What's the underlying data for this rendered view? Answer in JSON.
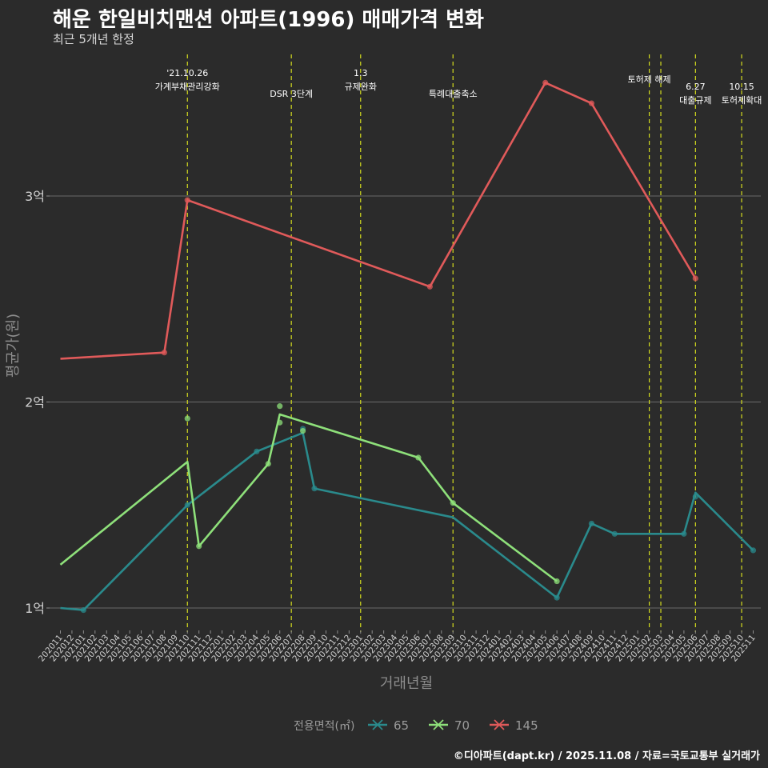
{
  "header": {
    "title": "해운 한일비치맨션 아파트(1996) 매매가격 변화",
    "subtitle": "최근 5개년 한정"
  },
  "caption": "©디아파트(dapt.kr) / 2025.11.08 / 자료=국토교통부 실거래가",
  "chart_data": {
    "type": "line",
    "title": "해운 한일비치맨션 아파트(1996) 매매가격 변화",
    "xlabel": "거래년월",
    "ylabel": "평균가(원)",
    "ylim": [
      0.9,
      3.7
    ],
    "yticks": [
      {
        "value": 1,
        "label": "1억"
      },
      {
        "value": 2,
        "label": "2억"
      },
      {
        "value": 3,
        "label": "3억"
      }
    ],
    "categories": [
      "202011",
      "202012",
      "202101",
      "202102",
      "202103",
      "202104",
      "202105",
      "202106",
      "202107",
      "202108",
      "202109",
      "202110",
      "202111",
      "202112",
      "202201",
      "202202",
      "202203",
      "202204",
      "202205",
      "202206",
      "202207",
      "202208",
      "202209",
      "202210",
      "202211",
      "202212",
      "202301",
      "202302",
      "202303",
      "202304",
      "202305",
      "202306",
      "202307",
      "202308",
      "202309",
      "202310",
      "202311",
      "202312",
      "202401",
      "202402",
      "202403",
      "202404",
      "202405",
      "202406",
      "202407",
      "202408",
      "202409",
      "202410",
      "202411",
      "202412",
      "202501",
      "202502",
      "202503",
      "202504",
      "202505",
      "202506",
      "202507",
      "202508",
      "202509",
      "202510",
      "202511"
    ],
    "legend": {
      "title": "전용면적(㎡)",
      "position": "bottom"
    },
    "series": [
      {
        "name": "65",
        "color": "#2a8a8c",
        "line": [
          [
            "202011",
            1.0
          ],
          [
            "202101",
            0.99
          ],
          [
            "202110",
            1.5
          ],
          [
            "202204",
            1.76
          ],
          [
            "202208",
            1.85
          ],
          [
            "202209",
            1.58
          ],
          [
            "202309",
            1.44
          ],
          [
            "202406",
            1.05
          ],
          [
            "202409",
            1.41
          ],
          [
            "202411",
            1.36
          ],
          [
            "202505",
            1.36
          ],
          [
            "202506",
            1.56
          ],
          [
            "202511",
            1.28
          ]
        ],
        "points": [
          [
            "202101",
            0.99
          ],
          [
            "202110",
            1.5
          ],
          [
            "202204",
            1.76
          ],
          [
            "202208",
            1.87
          ],
          [
            "202209",
            1.58
          ],
          [
            "202406",
            1.05
          ],
          [
            "202409",
            1.41
          ],
          [
            "202411",
            1.36
          ],
          [
            "202505",
            1.36
          ],
          [
            "202506",
            1.54
          ],
          [
            "202511",
            1.28
          ]
        ]
      },
      {
        "name": "70",
        "color": "#8ee07a",
        "line": [
          [
            "202011",
            1.21
          ],
          [
            "202110",
            1.71
          ],
          [
            "202111",
            1.3
          ],
          [
            "202205",
            1.7
          ],
          [
            "202206",
            1.94
          ],
          [
            "202306",
            1.73
          ],
          [
            "202309",
            1.51
          ],
          [
            "202406",
            1.13
          ]
        ],
        "points": [
          [
            "202110",
            1.92
          ],
          [
            "202111",
            1.3
          ],
          [
            "202205",
            1.7
          ],
          [
            "202206",
            1.98
          ],
          [
            "202206",
            1.9
          ],
          [
            "202208",
            1.86
          ],
          [
            "202306",
            1.73
          ],
          [
            "202309",
            1.51
          ],
          [
            "202406",
            1.13
          ]
        ]
      },
      {
        "name": "145",
        "color": "#e05a5a",
        "line": [
          [
            "202011",
            2.21
          ],
          [
            "202108",
            2.24
          ],
          [
            "202110",
            2.98
          ],
          [
            "202307",
            2.56
          ],
          [
            "202405",
            3.55
          ],
          [
            "202409",
            3.45
          ],
          [
            "202506",
            2.6
          ]
        ],
        "points": [
          [
            "202108",
            2.24
          ],
          [
            "202110",
            2.98
          ],
          [
            "202307",
            2.56
          ],
          [
            "202405",
            3.55
          ],
          [
            "202409",
            3.45
          ],
          [
            "202506",
            2.6
          ]
        ]
      }
    ],
    "events": [
      {
        "month": "202110",
        "lines": [
          "'21.10.26",
          "가계부채관리강화"
        ]
      },
      {
        "month": "202207",
        "lines": [
          "DSR 3단계"
        ]
      },
      {
        "month": "202301",
        "lines": [
          "1.3",
          "규제완화"
        ]
      },
      {
        "month": "202309",
        "lines": [
          "특례대출축소"
        ]
      },
      {
        "month": "202502",
        "lines": [
          "토허제 해제"
        ]
      },
      {
        "month": "202503",
        "lines": []
      },
      {
        "month": "202506",
        "lines": [
          "6.27",
          "대출규제"
        ]
      },
      {
        "month": "202510",
        "lines": [
          "10.15",
          "토허제확대"
        ]
      }
    ]
  }
}
